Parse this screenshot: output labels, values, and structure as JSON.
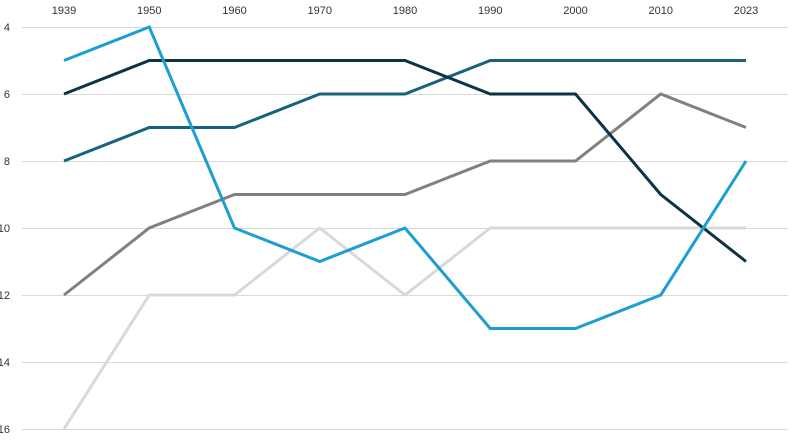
{
  "chart_data": {
    "type": "line",
    "categories": [
      "1939",
      "1950",
      "1960",
      "1970",
      "1980",
      "1990",
      "2000",
      "2010",
      "2023"
    ],
    "y_ticks": [
      4,
      6,
      8,
      10,
      12,
      14,
      16
    ],
    "y_tick_labels": [
      "4",
      "6",
      "8",
      "10",
      "12",
      "14",
      "16"
    ],
    "ylim": [
      16,
      4
    ],
    "y_inverted": true,
    "grid": true,
    "legend": "none",
    "series": [
      {
        "color": "#d9d9d9",
        "values": [
          16,
          12,
          12,
          10,
          12,
          10,
          10,
          10,
          10
        ]
      },
      {
        "color": "#808080",
        "values": [
          12,
          10,
          9,
          9,
          9,
          8,
          8,
          6,
          7
        ]
      },
      {
        "color": "#17637f",
        "values": [
          8,
          7,
          7,
          6,
          6,
          5,
          5,
          5,
          5
        ]
      },
      {
        "color": "#0d3347",
        "values": [
          6,
          5,
          5,
          5,
          5,
          6,
          6,
          9,
          11
        ]
      },
      {
        "color": "#1b9fd2",
        "values": [
          5,
          4,
          10,
          11,
          10,
          13,
          13,
          12,
          8
        ]
      }
    ]
  }
}
